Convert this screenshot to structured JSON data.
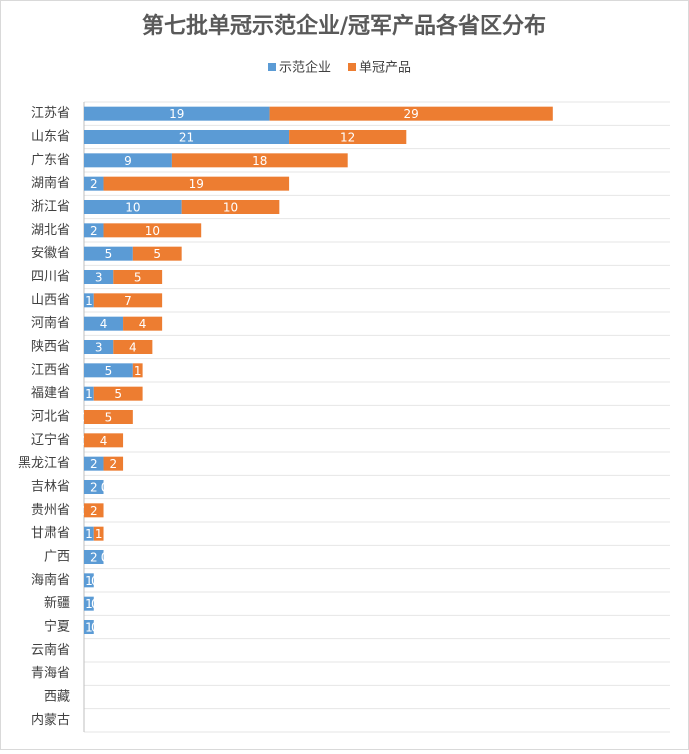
{
  "chart_data": {
    "type": "stacked-bar-horizontal",
    "title": "第七批单冠示范企业/冠军产品各省区分布",
    "categories": [
      "江苏省",
      "山东省",
      "广东省",
      "湖南省",
      "浙江省",
      "湖北省",
      "安徽省",
      "四川省",
      "山西省",
      "河南省",
      "陕西省",
      "江西省",
      "福建省",
      "河北省",
      "辽宁省",
      "黑龙江省",
      "吉林省",
      "贵州省",
      "甘肃省",
      "广西",
      "海南省",
      "新疆",
      "宁夏",
      "云南省",
      "青海省",
      "西藏",
      "内蒙古"
    ],
    "series": [
      {
        "name": "示范企业",
        "color": "#5b9bd5",
        "values": [
          19,
          21,
          9,
          2,
          10,
          2,
          5,
          3,
          1,
          4,
          3,
          5,
          1,
          0,
          0,
          2,
          2,
          0,
          1,
          2,
          1,
          1,
          1,
          0,
          0,
          0,
          0
        ]
      },
      {
        "name": "单冠产品",
        "color": "#ed7d31",
        "values": [
          29,
          12,
          18,
          19,
          10,
          10,
          5,
          5,
          7,
          4,
          4,
          1,
          5,
          5,
          4,
          2,
          0,
          2,
          1,
          0,
          0,
          0,
          0,
          0,
          0,
          0,
          0
        ]
      }
    ],
    "xlim": [
      0,
      60
    ],
    "grid": true,
    "legend": "top"
  }
}
